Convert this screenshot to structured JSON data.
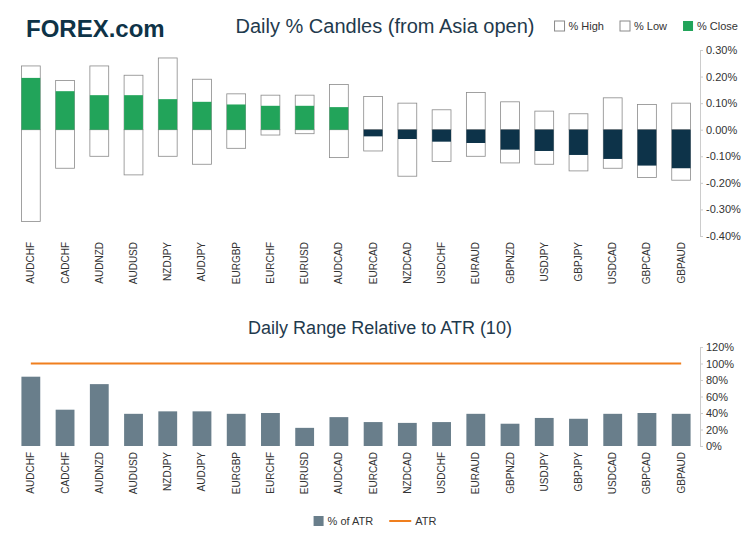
{
  "logo": "FOREX.com",
  "chart_data": [
    {
      "type": "bar",
      "title": "Daily % Candles (from Asia open)",
      "categories": [
        "AUDCHF",
        "CADCHF",
        "AUDNZD",
        "AUDUSD",
        "NZDJPY",
        "AUDJPY",
        "EURGBP",
        "EURCHF",
        "EURUSD",
        "AUDCAD",
        "EURCAD",
        "NZDCAD",
        "USDCHF",
        "EURAUD",
        "GBPNZD",
        "USDJPY",
        "GBPJPY",
        "USDCAD",
        "GBPCAD",
        "GBPAUD"
      ],
      "series": [
        {
          "name": "% High",
          "color": "#ffffff",
          "values": [
            0.24,
            0.185,
            0.24,
            0.205,
            0.27,
            0.19,
            0.135,
            0.13,
            0.13,
            0.17,
            0.125,
            0.1,
            0.075,
            0.14,
            0.105,
            0.07,
            0.06,
            0.12,
            0.095,
            0.1
          ]
        },
        {
          "name": "% Low",
          "color": "#ffffff",
          "values": [
            -0.345,
            -0.145,
            -0.1,
            -0.17,
            -0.1,
            -0.13,
            -0.07,
            -0.02,
            -0.015,
            -0.105,
            -0.08,
            -0.175,
            -0.12,
            -0.1,
            -0.125,
            -0.13,
            -0.155,
            -0.145,
            -0.18,
            -0.19
          ]
        },
        {
          "name": "% Close",
          "color": "#22a45a",
          "values": [
            0.195,
            0.145,
            0.13,
            0.13,
            0.115,
            0.105,
            0.095,
            0.09,
            0.09,
            0.085,
            -0.025,
            -0.035,
            -0.045,
            -0.05,
            -0.075,
            -0.08,
            -0.095,
            -0.11,
            -0.135,
            -0.145
          ],
          "colors": [
            "#22a45a",
            "#22a45a",
            "#22a45a",
            "#22a45a",
            "#22a45a",
            "#22a45a",
            "#22a45a",
            "#22a45a",
            "#22a45a",
            "#22a45a",
            "#0d3349",
            "#0d3349",
            "#0d3349",
            "#0d3349",
            "#0d3349",
            "#0d3349",
            "#0d3349",
            "#0d3349",
            "#0d3349",
            "#0d3349"
          ]
        }
      ],
      "ylim": [
        -0.4,
        0.3
      ],
      "yticks": [
        {
          "value": -0.4,
          "label": "-0.40%"
        },
        {
          "value": -0.3,
          "label": "-0.30%"
        },
        {
          "value": -0.2,
          "label": "-0.20%"
        },
        {
          "value": -0.1,
          "label": "-0.10%"
        },
        {
          "value": 0,
          "label": "0.00%"
        },
        {
          "value": 0.1,
          "label": "0.10%"
        },
        {
          "value": 0.2,
          "label": "0.20%"
        },
        {
          "value": 0.3,
          "label": "0.30%"
        }
      ],
      "grid": false,
      "legend": "top-right"
    },
    {
      "type": "bar",
      "title": "Daily Range Relative to ATR (10)",
      "categories": [
        "AUDCHF",
        "CADCHF",
        "AUDNZD",
        "AUDUSD",
        "NZDJPY",
        "AUDJPY",
        "EURGBP",
        "EURCHF",
        "EURUSD",
        "AUDCAD",
        "EURCAD",
        "NZDCAD",
        "USDCHF",
        "EURAUD",
        "GBPNZD",
        "USDJPY",
        "GBPJPY",
        "USDCAD",
        "GBPCAD",
        "GBPAUD"
      ],
      "series": [
        {
          "name": "% of ATR",
          "type": "bar",
          "color": "#697e8b",
          "values": [
            84,
            44,
            75,
            39,
            42,
            42,
            39,
            40,
            22,
            35,
            29,
            28,
            29,
            39,
            27,
            34,
            33,
            39,
            40,
            39
          ]
        },
        {
          "name": "ATR",
          "type": "line",
          "color": "#f07f1e",
          "values": [
            100,
            100,
            100,
            100,
            100,
            100,
            100,
            100,
            100,
            100,
            100,
            100,
            100,
            100,
            100,
            100,
            100,
            100,
            100,
            100
          ]
        }
      ],
      "ylim": [
        0,
        120
      ],
      "yticks": [
        {
          "value": 0,
          "label": "0%"
        },
        {
          "value": 20,
          "label": "20%"
        },
        {
          "value": 40,
          "label": "40%"
        },
        {
          "value": 60,
          "label": "60%"
        },
        {
          "value": 80,
          "label": "80%"
        },
        {
          "value": 100,
          "label": "100%"
        },
        {
          "value": 120,
          "label": "120%"
        }
      ],
      "grid": false,
      "legend": "bottom"
    }
  ]
}
